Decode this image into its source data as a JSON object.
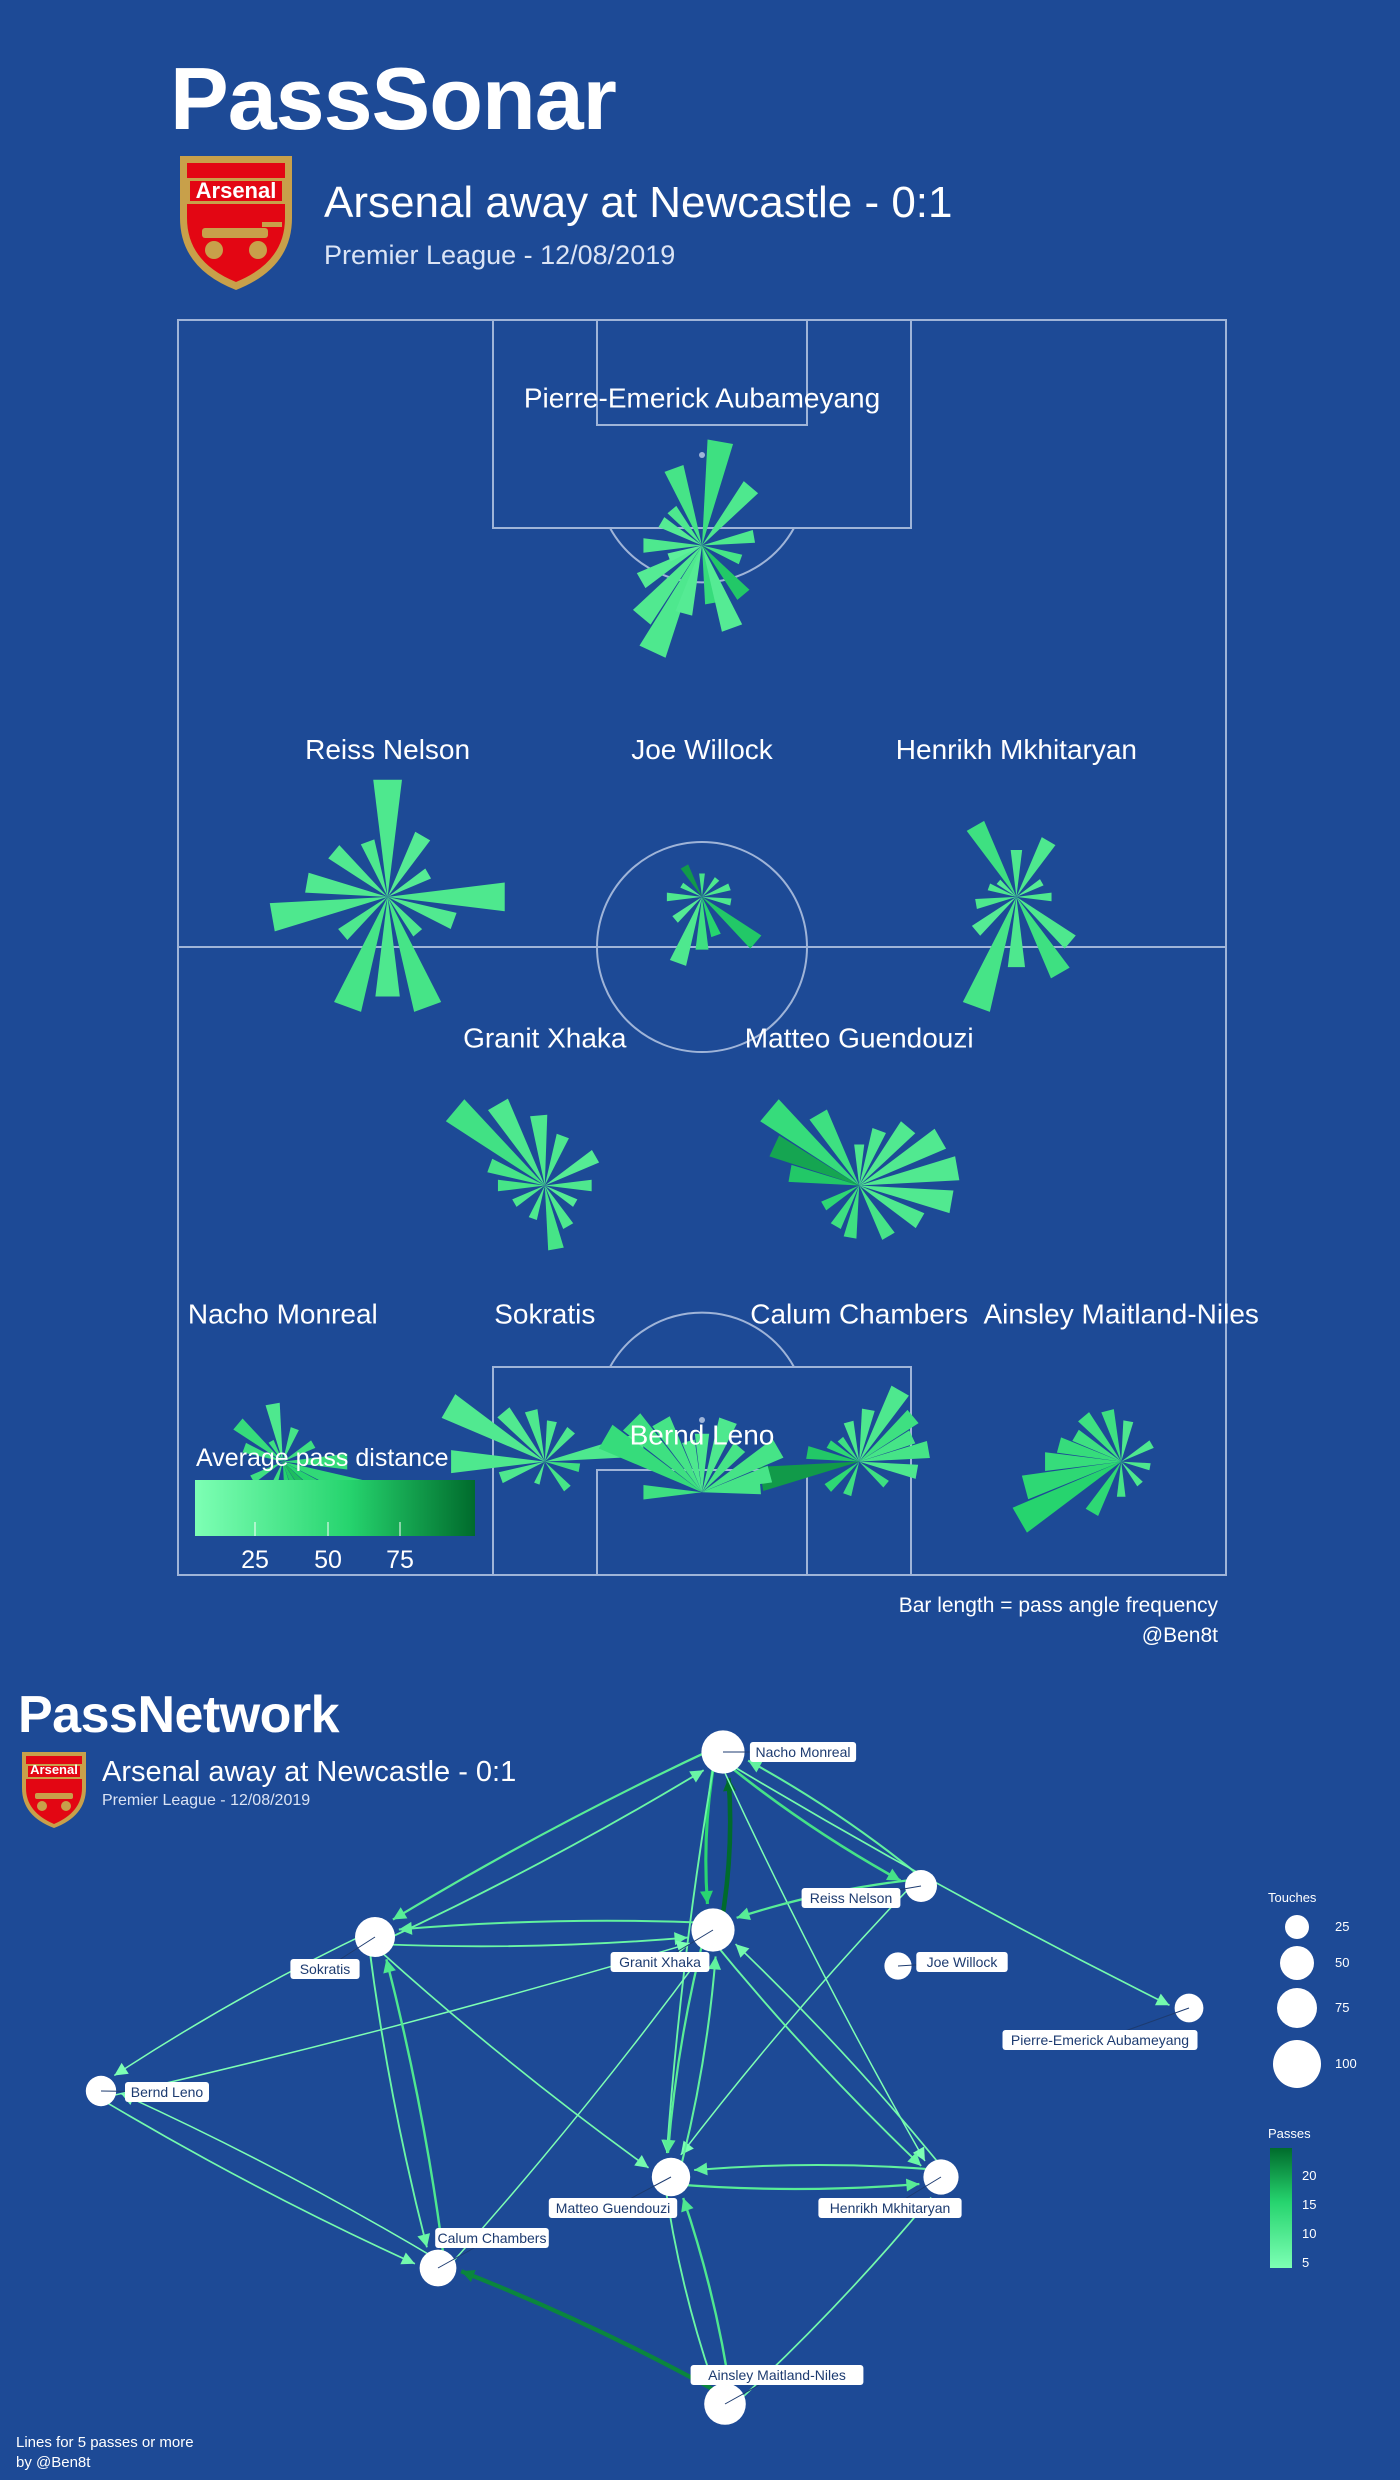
{
  "sonar": {
    "title": "PassSonar",
    "subtitle": "Arsenal away at Newcastle - 0:1",
    "subsubtitle": "Premier League - 12/08/2019",
    "badge_text": "Arsenal",
    "legend_title": "Average pass distance",
    "legend_ticks": [
      "25",
      "50",
      "75"
    ],
    "footer_note": "Bar length = pass angle frequency",
    "credit": "@Ben8t"
  },
  "network": {
    "title": "PassNetwork",
    "subtitle": "Arsenal away at Newcastle - 0:1",
    "subsubtitle": "Premier League - 12/08/2019",
    "badge_text": "Arsenal",
    "touches_title": "Touches",
    "touches_ticks": [
      "25",
      "50",
      "75",
      "100"
    ],
    "passes_title": "Passes",
    "passes_ticks": [
      "20",
      "15",
      "10",
      "5"
    ],
    "footer_line1": "Lines for 5 passes or more",
    "footer_line2": "by @Ben8t"
  },
  "colors": {
    "background": "#1d4a96",
    "pitch_lines": "#9fb4d8",
    "bar_low": "#7dffb4",
    "bar_high": "#006b2c",
    "node": "#ffffff"
  },
  "chart_data": [
    {
      "type": "polar-bar",
      "title": "PassSonar",
      "legend": "Average pass distance",
      "color_scale": [
        0,
        100
      ],
      "players": [
        {
          "name": "Pierre-Emerick Aubameyang",
          "pitch_x": 50,
          "pitch_y": 10,
          "bars": [
            [
              205,
              1.0,
              30
            ],
            [
              220,
              0.8,
              28
            ],
            [
              240,
              0.6,
              25
            ],
            [
              270,
              0.5,
              30
            ],
            [
              300,
              0.4,
              25
            ],
            [
              340,
              0.7,
              35
            ],
            [
              10,
              0.9,
              40
            ],
            [
              40,
              0.65,
              30
            ],
            [
              80,
              0.45,
              30
            ],
            [
              110,
              0.35,
              35
            ],
            [
              140,
              0.55,
              60
            ],
            [
              170,
              0.5,
              45
            ],
            [
              160,
              0.75,
              25
            ],
            [
              195,
              0.6,
              25
            ],
            [
              250,
              0.3,
              20
            ],
            [
              320,
              0.4,
              30
            ]
          ]
        },
        {
          "name": "Joe Willock",
          "pitch_x": 50,
          "pitch_y": 38,
          "bars": [
            [
              200,
              0.6,
              30
            ],
            [
              230,
              0.3,
              25
            ],
            [
              270,
              0.3,
              30
            ],
            [
              300,
              0.2,
              30
            ],
            [
              330,
              0.3,
              80
            ],
            [
              0,
              0.2,
              35
            ],
            [
              40,
              0.2,
              30
            ],
            [
              70,
              0.25,
              30
            ],
            [
              100,
              0.25,
              30
            ],
            [
              130,
              0.6,
              60
            ],
            [
              160,
              0.35,
              55
            ],
            [
              180,
              0.45,
              40
            ]
          ]
        },
        {
          "name": "Reiss Nelson",
          "pitch_x": 20,
          "pitch_y": 38,
          "bars": [
            [
              0,
              1.0,
              30
            ],
            [
              30,
              0.6,
              25
            ],
            [
              60,
              0.4,
              25
            ],
            [
              90,
              1.0,
              30
            ],
            [
              110,
              0.6,
              28
            ],
            [
              140,
              0.4,
              30
            ],
            [
              160,
              1.0,
              35
            ],
            [
              180,
              0.85,
              30
            ],
            [
              200,
              1.0,
              35
            ],
            [
              230,
              0.5,
              30
            ],
            [
              260,
              1.0,
              30
            ],
            [
              280,
              0.7,
              28
            ],
            [
              310,
              0.6,
              28
            ],
            [
              340,
              0.5,
              30
            ]
          ]
        },
        {
          "name": "Henrikh Mkhitaryan",
          "pitch_x": 80,
          "pitch_y": 38,
          "bars": [
            [
              330,
              0.7,
              40
            ],
            [
              0,
              0.4,
              30
            ],
            [
              30,
              0.55,
              30
            ],
            [
              60,
              0.25,
              25
            ],
            [
              90,
              0.3,
              30
            ],
            [
              130,
              0.6,
              30
            ],
            [
              150,
              0.75,
              40
            ],
            [
              180,
              0.6,
              30
            ],
            [
              200,
              1.0,
              35
            ],
            [
              230,
              0.45,
              25
            ],
            [
              260,
              0.35,
              30
            ],
            [
              290,
              0.25,
              30
            ],
            [
              310,
              0.2,
              25
            ]
          ]
        },
        {
          "name": "Granit Xhaka",
          "pitch_x": 35,
          "pitch_y": 61,
          "bars": [
            [
              310,
              1.0,
              38
            ],
            [
              330,
              0.8,
              30
            ],
            [
              355,
              0.6,
              30
            ],
            [
              20,
              0.45,
              30
            ],
            [
              60,
              0.5,
              25
            ],
            [
              90,
              0.4,
              30
            ],
            [
              120,
              0.3,
              25
            ],
            [
              150,
              0.4,
              30
            ],
            [
              170,
              0.55,
              35
            ],
            [
              200,
              0.3,
              30
            ],
            [
              240,
              0.3,
              30
            ],
            [
              270,
              0.4,
              35
            ],
            [
              290,
              0.5,
              35
            ]
          ]
        },
        {
          "name": "Matteo Guendouzi",
          "pitch_x": 65,
          "pitch_y": 61,
          "bars": [
            [
              310,
              1.0,
              45
            ],
            [
              330,
              0.7,
              40
            ],
            [
              0,
              0.35,
              30
            ],
            [
              20,
              0.5,
              30
            ],
            [
              40,
              0.65,
              28
            ],
            [
              60,
              0.8,
              28
            ],
            [
              80,
              0.85,
              28
            ],
            [
              100,
              0.8,
              28
            ],
            [
              120,
              0.6,
              30
            ],
            [
              150,
              0.5,
              35
            ],
            [
              190,
              0.45,
              40
            ],
            [
              210,
              0.4,
              40
            ],
            [
              240,
              0.35,
              50
            ],
            [
              280,
              0.6,
              60
            ],
            [
              295,
              0.8,
              75
            ]
          ]
        },
        {
          "name": "Nacho Monreal",
          "pitch_x": 10,
          "pitch_y": 83,
          "bars": [
            [
              330,
              0.2,
              40
            ],
            [
              350,
              0.5,
              30
            ],
            [
              20,
              0.3,
              35
            ],
            [
              60,
              0.3,
              40
            ],
            [
              90,
              0.55,
              45
            ],
            [
              110,
              0.95,
              48
            ],
            [
              125,
              0.85,
              55
            ],
            [
              140,
              0.7,
              65
            ],
            [
              155,
              0.65,
              60
            ],
            [
              170,
              0.55,
              55
            ],
            [
              200,
              0.3,
              40
            ],
            [
              240,
              0.3,
              40
            ],
            [
              290,
              0.35,
              40
            ],
            [
              310,
              0.5,
              45
            ]
          ]
        },
        {
          "name": "Sokratis",
          "pitch_x": 35,
          "pitch_y": 83,
          "bars": [
            [
              270,
              0.8,
              30
            ],
            [
              300,
              0.95,
              28
            ],
            [
              320,
              0.55,
              28
            ],
            [
              345,
              0.45,
              30
            ],
            [
              10,
              0.35,
              30
            ],
            [
              40,
              0.35,
              30
            ],
            [
              80,
              0.85,
              30
            ],
            [
              100,
              0.3,
              40
            ],
            [
              140,
              0.3,
              35
            ],
            [
              200,
              0.2,
              30
            ],
            [
              250,
              0.4,
              30
            ]
          ]
        },
        {
          "name": "Calum Chambers",
          "pitch_x": 65,
          "pitch_y": 83,
          "bars": [
            [
              260,
              0.85,
              80
            ],
            [
              280,
              0.45,
              60
            ],
            [
              300,
              0.3,
              50
            ],
            [
              320,
              0.25,
              40
            ],
            [
              345,
              0.35,
              30
            ],
            [
              10,
              0.45,
              30
            ],
            [
              30,
              0.7,
              30
            ],
            [
              50,
              0.6,
              40
            ],
            [
              65,
              0.5,
              35
            ],
            [
              80,
              0.6,
              35
            ],
            [
              100,
              0.5,
              30
            ],
            [
              130,
              0.3,
              40
            ],
            [
              200,
              0.3,
              40
            ],
            [
              230,
              0.35,
              50
            ]
          ]
        },
        {
          "name": "Ainsley Maitland-Niles",
          "pitch_x": 90,
          "pitch_y": 83,
          "bars": [
            [
              240,
              1.0,
              55
            ],
            [
              255,
              0.85,
              50
            ],
            [
              270,
              0.65,
              45
            ],
            [
              285,
              0.55,
              45
            ],
            [
              300,
              0.45,
              40
            ],
            [
              320,
              0.5,
              40
            ],
            [
              345,
              0.45,
              40
            ],
            [
              10,
              0.35,
              30
            ],
            [
              60,
              0.3,
              30
            ],
            [
              100,
              0.25,
              30
            ],
            [
              140,
              0.25,
              30
            ],
            [
              180,
              0.3,
              35
            ],
            [
              210,
              0.5,
              50
            ]
          ]
        },
        {
          "name": "Bernd Leno",
          "pitch_x": 50,
          "pitch_y": 95,
          "bars": [
            [
              300,
              0.95,
              45
            ],
            [
              315,
              0.85,
              40
            ],
            [
              330,
              0.7,
              35
            ],
            [
              345,
              0.45,
              30
            ],
            [
              0,
              0.5,
              30
            ],
            [
              20,
              0.65,
              30
            ],
            [
              40,
              0.5,
              35
            ],
            [
              60,
              0.75,
              35
            ],
            [
              75,
              0.6,
              35
            ],
            [
              85,
              0.5,
              35
            ],
            [
              270,
              0.5,
              40
            ]
          ]
        }
      ]
    },
    {
      "type": "network",
      "title": "PassNetwork",
      "nodes": [
        {
          "name": "Nacho Monreal",
          "touches": 85
        },
        {
          "name": "Reiss Nelson",
          "touches": 50
        },
        {
          "name": "Sokratis",
          "touches": 75
        },
        {
          "name": "Granit Xhaka",
          "touches": 85
        },
        {
          "name": "Joe Willock",
          "touches": 35
        },
        {
          "name": "Pierre-Emerick Aubameyang",
          "touches": 40
        },
        {
          "name": "Bernd Leno",
          "touches": 45
        },
        {
          "name": "Matteo Guendouzi",
          "touches": 70
        },
        {
          "name": "Henrikh Mkhitaryan",
          "touches": 60
        },
        {
          "name": "Calum Chambers",
          "touches": 65
        },
        {
          "name": "Ainsley Maitland-Niles",
          "touches": 80
        }
      ],
      "edges": [
        {
          "from": "Granit Xhaka",
          "to": "Nacho Monreal",
          "passes": 22
        },
        {
          "from": "Nacho Monreal",
          "to": "Granit Xhaka",
          "passes": 14
        },
        {
          "from": "Nacho Monreal",
          "to": "Sokratis",
          "passes": 9
        },
        {
          "from": "Sokratis",
          "to": "Nacho Monreal",
          "passes": 7
        },
        {
          "from": "Nacho Monreal",
          "to": "Reiss Nelson",
          "passes": 11
        },
        {
          "from": "Reiss Nelson",
          "to": "Nacho Monreal",
          "passes": 8
        },
        {
          "from": "Nacho Monreal",
          "to": "Pierre-Emerick Aubameyang",
          "passes": 6
        },
        {
          "from": "Nacho Monreal",
          "to": "Henrikh Mkhitaryan",
          "passes": 5
        },
        {
          "from": "Nacho Monreal",
          "to": "Matteo Guendouzi",
          "passes": 7
        },
        {
          "from": "Reiss Nelson",
          "to": "Granit Xhaka",
          "passes": 9
        },
        {
          "from": "Reiss Nelson",
          "to": "Matteo Guendouzi",
          "passes": 5
        },
        {
          "from": "Granit Xhaka",
          "to": "Sokratis",
          "passes": 8
        },
        {
          "from": "Sokratis",
          "to": "Granit Xhaka",
          "passes": 7
        },
        {
          "from": "Sokratis",
          "to": "Bernd Leno",
          "passes": 5
        },
        {
          "from": "Bernd Leno",
          "to": "Granit Xhaka",
          "passes": 5
        },
        {
          "from": "Sokratis",
          "to": "Matteo Guendouzi",
          "passes": 6
        },
        {
          "from": "Sokratis",
          "to": "Calum Chambers",
          "passes": 7
        },
        {
          "from": "Calum Chambers",
          "to": "Sokratis",
          "passes": 10
        },
        {
          "from": "Bernd Leno",
          "to": "Calum Chambers",
          "passes": 6
        },
        {
          "from": "Calum Chambers",
          "to": "Bernd Leno",
          "passes": 5
        },
        {
          "from": "Calum Chambers",
          "to": "Granit Xhaka",
          "passes": 5
        },
        {
          "from": "Granit Xhaka",
          "to": "Matteo Guendouzi",
          "passes": 9
        },
        {
          "from": "Matteo Guendouzi",
          "to": "Granit Xhaka",
          "passes": 8
        },
        {
          "from": "Granit Xhaka",
          "to": "Henrikh Mkhitaryan",
          "passes": 7
        },
        {
          "from": "Henrikh Mkhitaryan",
          "to": "Granit Xhaka",
          "passes": 6
        },
        {
          "from": "Matteo Guendouzi",
          "to": "Henrikh Mkhitaryan",
          "passes": 9
        },
        {
          "from": "Henrikh Mkhitaryan",
          "to": "Matteo Guendouzi",
          "passes": 8
        },
        {
          "from": "Ainsley Maitland-Niles",
          "to": "Calum Chambers",
          "passes": 20
        },
        {
          "from": "Ainsley Maitland-Niles",
          "to": "Matteo Guendouzi",
          "passes": 10
        },
        {
          "from": "Matteo Guendouzi",
          "to": "Ainsley Maitland-Niles",
          "passes": 7
        },
        {
          "from": "Ainsley Maitland-Niles",
          "to": "Henrikh Mkhitaryan",
          "passes": 6
        }
      ]
    }
  ]
}
